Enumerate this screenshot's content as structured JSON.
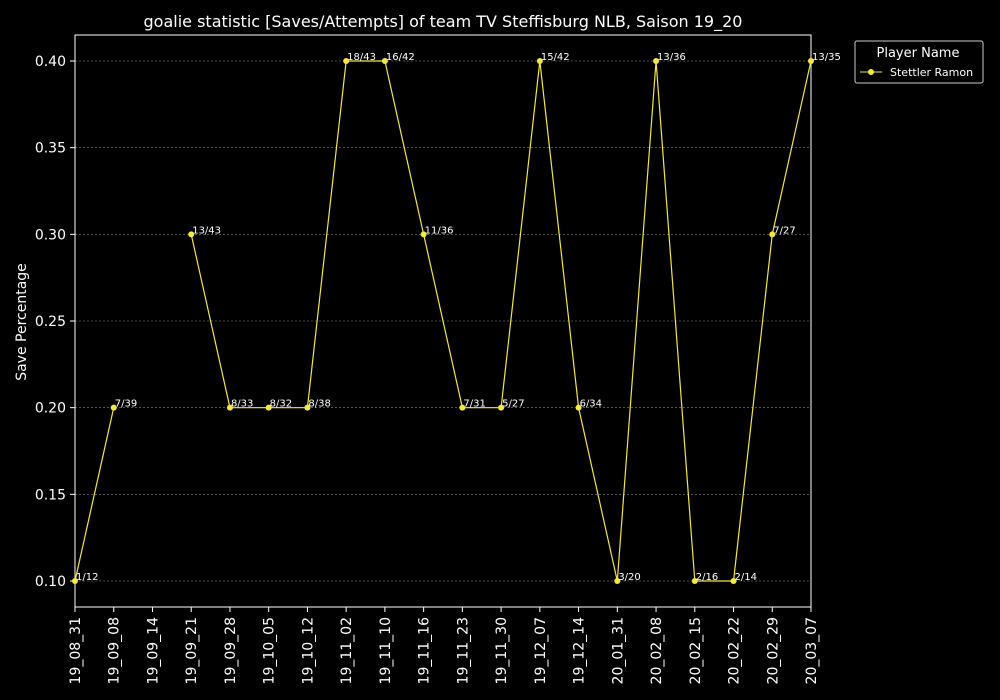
{
  "chart_data": {
    "type": "line",
    "title": "goalie statistic [Saves/Attempts] of team TV Steffisburg NLB, Saison 19_20",
    "xlabel": "",
    "ylabel": "Save Percentage",
    "categories": [
      "19_08_31",
      "19_09_08",
      "19_09_14",
      "19_09_21",
      "19_09_28",
      "19_10_05",
      "19_10_12",
      "19_11_02",
      "19_11_10",
      "19_11_16",
      "19_11_23",
      "19_11_30",
      "19_12_07",
      "19_12_14",
      "20_01_31",
      "20_02_08",
      "20_02_15",
      "20_02_22",
      "20_02_29",
      "20_03_07"
    ],
    "yticks": [
      "0.10",
      "0.15",
      "0.20",
      "0.25",
      "0.30",
      "0.35",
      "0.40"
    ],
    "ylim": [
      0.085,
      0.415
    ],
    "grid": true,
    "legend": {
      "title": "Player Name",
      "placement": "top-right-outside"
    },
    "series": [
      {
        "name": "Stettler Ramon",
        "color": "#f5e642",
        "values": [
          0.1,
          0.2,
          null,
          0.3,
          0.2,
          0.2,
          0.2,
          0.4,
          0.4,
          0.3,
          0.2,
          0.2,
          0.4,
          0.2,
          0.1,
          0.4,
          0.1,
          0.1,
          0.3,
          0.4
        ],
        "labels": [
          "1/12",
          "7/39",
          null,
          "13/43",
          "8/33",
          "8/32",
          "8/38",
          "18/43",
          "16/42",
          "11/36",
          "7/31",
          "5/27",
          "15/42",
          "6/34",
          "3/20",
          "13/36",
          "2/16",
          "2/14",
          "7/27",
          "13/35"
        ]
      }
    ]
  }
}
